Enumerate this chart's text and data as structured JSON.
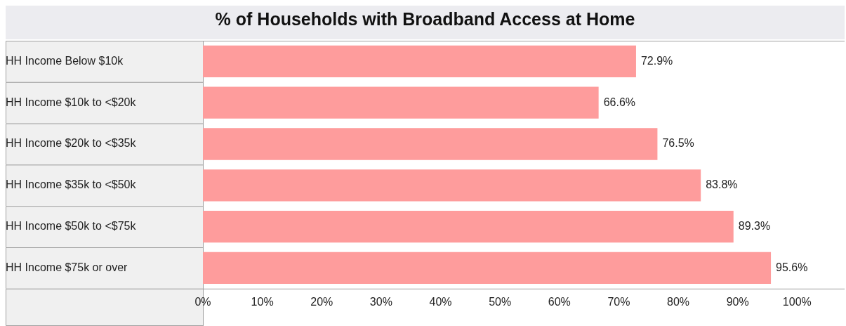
{
  "chart_data": {
    "type": "bar",
    "orientation": "horizontal",
    "title": "% of Households with Broadband Access at Home",
    "categories": [
      "HH Income Below $10k",
      "HH Income $10k to <$20k",
      "HH Income $20k to <$35k",
      "HH Income $35k to <$50k",
      "HH Income $50k to <$75k",
      "HH Income $75k or over"
    ],
    "values": [
      72.9,
      66.6,
      76.5,
      83.8,
      89.3,
      95.6
    ],
    "value_labels": [
      "72.9%",
      "66.6%",
      "76.5%",
      "83.8%",
      "89.3%",
      "95.6%"
    ],
    "color": "#fe9c9c",
    "xlim": [
      0,
      108
    ],
    "xticks": [
      {
        "value": 0,
        "label": "0%"
      },
      {
        "value": 10,
        "label": "10%"
      },
      {
        "value": 20,
        "label": "20%"
      },
      {
        "value": 30,
        "label": "30%"
      },
      {
        "value": 40,
        "label": "40%"
      },
      {
        "value": 50,
        "label": "50%"
      },
      {
        "value": 60,
        "label": "60%"
      },
      {
        "value": 70,
        "label": "70%"
      },
      {
        "value": 80,
        "label": "80%"
      },
      {
        "value": 90,
        "label": "90%"
      },
      {
        "value": 100,
        "label": "100%"
      }
    ],
    "grid": false,
    "legend": false
  }
}
